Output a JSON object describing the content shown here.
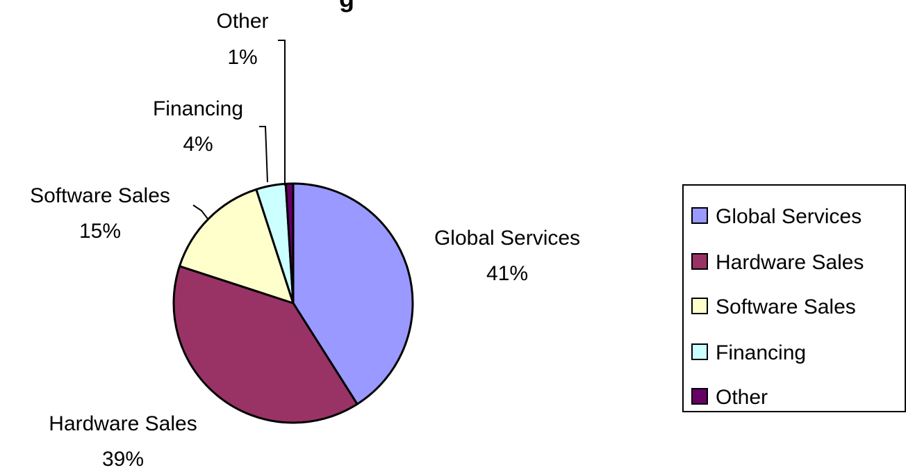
{
  "chart_data": {
    "type": "pie",
    "title": "",
    "slices": [
      {
        "label": "Global Services",
        "value": 41,
        "display": "41%",
        "color": "#9999ff"
      },
      {
        "label": "Hardware Sales",
        "value": 39,
        "display": "39%",
        "color": "#993366"
      },
      {
        "label": "Software Sales",
        "value": 15,
        "display": "15%",
        "color": "#ffffcc"
      },
      {
        "label": "Financing",
        "value": 4,
        "display": "4%",
        "color": "#ccffff"
      },
      {
        "label": "Other",
        "value": 1,
        "display": "1%",
        "color": "#660066"
      }
    ],
    "start": "12 o'clock",
    "direction": "clockwise",
    "legend": {
      "position": "right",
      "items": [
        "Global Services",
        "Hardware Sales",
        "Software Sales",
        "Financing",
        "Other"
      ]
    }
  }
}
